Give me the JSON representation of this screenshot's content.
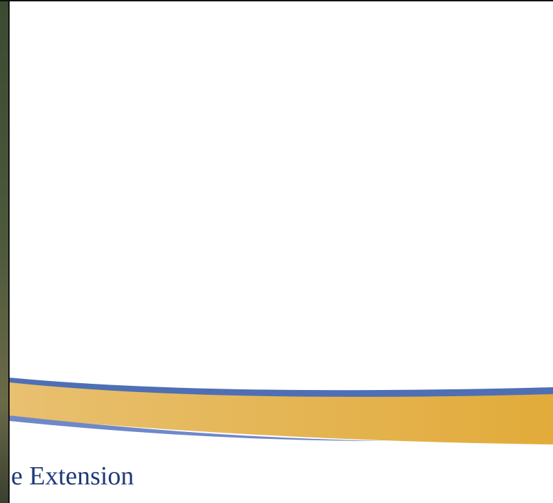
{
  "footer": {
    "text": "e Extension"
  }
}
